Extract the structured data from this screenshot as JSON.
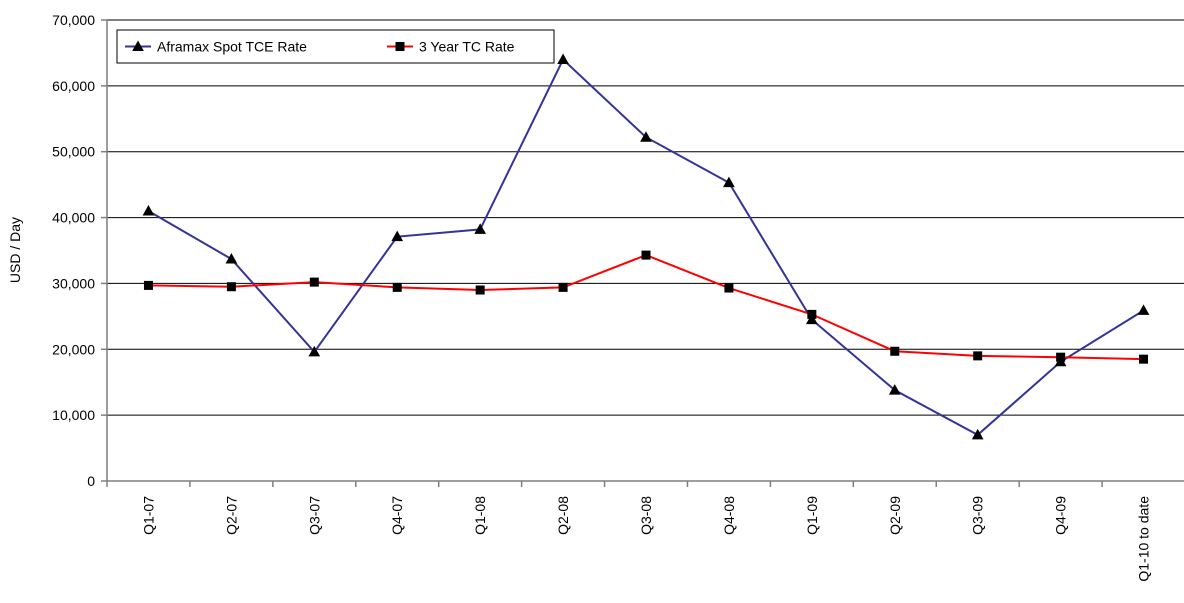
{
  "chart_data": {
    "type": "line",
    "title": "",
    "xlabel": "",
    "ylabel": "USD / Day",
    "ylim": [
      0,
      70000
    ],
    "yticks": [
      0,
      10000,
      20000,
      30000,
      40000,
      50000,
      60000,
      70000
    ],
    "ytick_labels": [
      "0",
      "10,000",
      "20,000",
      "30,000",
      "40,000",
      "50,000",
      "60,000",
      "70,000"
    ],
    "categories": [
      "Q1-07",
      "Q2-07",
      "Q3-07",
      "Q4-07",
      "Q1-08",
      "Q2-08",
      "Q3-08",
      "Q4-08",
      "Q1-09",
      "Q2-09",
      "Q3-09",
      "Q4-09",
      "Q1-10 to date"
    ],
    "grid": "horizontal",
    "legend_position": "top-left",
    "series": [
      {
        "name": "Aframax Spot TCE Rate",
        "color": "#33339a",
        "marker": "triangle",
        "values": [
          41000,
          33700,
          19600,
          37100,
          38200,
          64000,
          52200,
          45300,
          24500,
          13800,
          7000,
          18100,
          25900
        ]
      },
      {
        "name": "3 Year TC Rate",
        "color": "#ff0000",
        "marker": "square",
        "values": [
          29700,
          29500,
          30200,
          29400,
          29000,
          29400,
          34300,
          29300,
          25300,
          19700,
          19000,
          18800,
          18500
        ]
      }
    ]
  }
}
